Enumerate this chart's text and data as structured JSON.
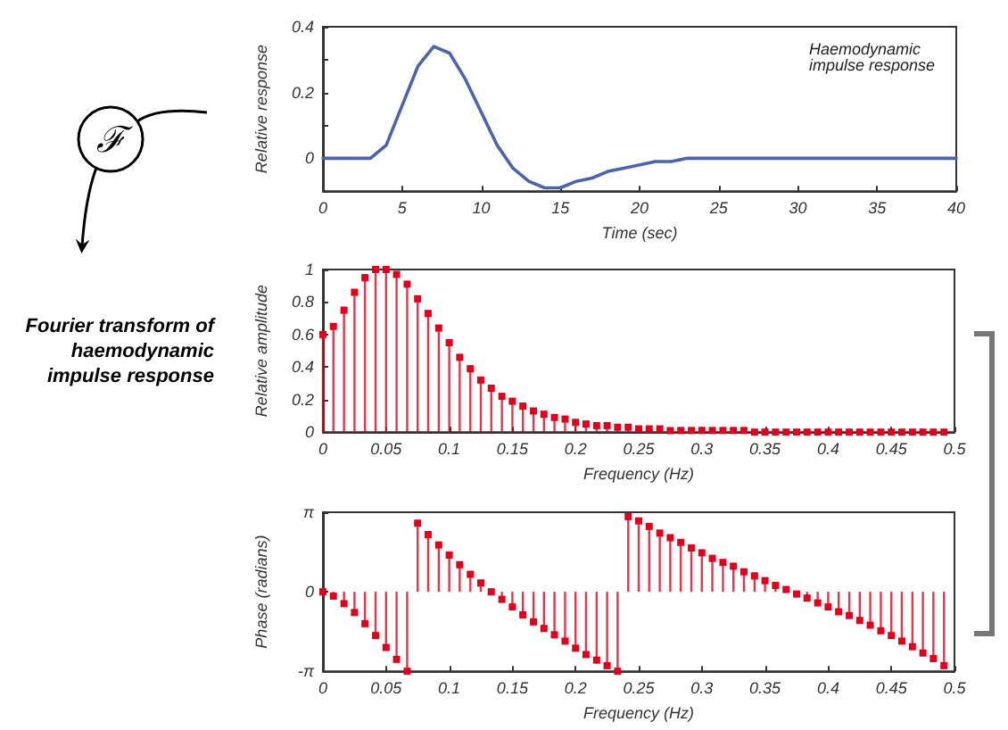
{
  "chart_data": [
    {
      "type": "line",
      "ylabel": "Relative response",
      "xlabel": "Time (sec)",
      "annotations": [
        "Haemodynamic impulse response",
        "ℱ"
      ],
      "x": [
        0,
        1,
        2,
        3,
        4,
        5,
        6,
        7,
        8,
        9,
        10,
        11,
        12,
        13,
        14,
        15,
        16,
        17,
        18,
        19,
        20,
        21,
        22,
        23,
        24,
        25,
        26,
        28,
        30,
        35,
        40
      ],
      "series": [
        {
          "color": "#4a64ad",
          "values": [
            0,
            0,
            0,
            0,
            0.04,
            0.16,
            0.28,
            0.34,
            0.32,
            0.24,
            0.14,
            0.04,
            -0.03,
            -0.07,
            -0.09,
            -0.09,
            -0.07,
            -0.06,
            -0.04,
            -0.03,
            -0.02,
            -0.01,
            -0.01,
            0,
            0,
            0,
            0,
            0,
            0,
            0,
            0
          ]
        }
      ],
      "xlim": [
        0,
        40
      ],
      "xticks": [
        0,
        5,
        10,
        15,
        20,
        25,
        30,
        35,
        40
      ],
      "ylim": [
        -0.1,
        0.4
      ],
      "yticks": [
        0,
        {
          "value": 0.1,
          "label": null
        },
        0.2,
        {
          "value": 0.3,
          "label": null
        },
        0.4
      ],
      "grid": false,
      "marker": "none",
      "line_style": "solid"
    },
    {
      "type": "lollipop",
      "ylabel": "Relative amplitude",
      "xlabel": "Frequency (Hz)",
      "annotations": [
        "Fourier transform of haemodynamic impulse response"
      ],
      "x": [
        0,
        0.0083,
        0.0167,
        0.025,
        0.0333,
        0.0417,
        0.05,
        0.0583,
        0.0667,
        0.075,
        0.0833,
        0.0917,
        0.1,
        0.1083,
        0.1167,
        0.125,
        0.1333,
        0.1417,
        0.15,
        0.1583,
        0.1667,
        0.175,
        0.1833,
        0.1917,
        0.2,
        0.2083,
        0.2167,
        0.225,
        0.2333,
        0.2417,
        0.25,
        0.2583,
        0.2667,
        0.275,
        0.2833,
        0.2917,
        0.3,
        0.3083,
        0.3167,
        0.325,
        0.3333,
        0.3417,
        0.35,
        0.3583,
        0.3667,
        0.375,
        0.3833,
        0.3917,
        0.4,
        0.4083,
        0.4167,
        0.425,
        0.4333,
        0.4417,
        0.45,
        0.4583,
        0.4667,
        0.475,
        0.4833,
        0.4917
      ],
      "series": [
        {
          "color": "#e3001b",
          "values": [
            0.6,
            0.65,
            0.75,
            0.86,
            0.95,
            1,
            1,
            0.97,
            0.91,
            0.82,
            0.73,
            0.64,
            0.55,
            0.46,
            0.39,
            0.32,
            0.27,
            0.22,
            0.19,
            0.16,
            0.13,
            0.11,
            0.09,
            0.08,
            0.06,
            0.05,
            0.04,
            0.04,
            0.03,
            0.03,
            0.02,
            0.02,
            0.02,
            0.01,
            0.01,
            0.01,
            0.01,
            0.01,
            0.01,
            0.01,
            0.01,
            0,
            0,
            0,
            0,
            0,
            0,
            0,
            0,
            0,
            0,
            0,
            0,
            0,
            0,
            0,
            0,
            0,
            0,
            0
          ]
        }
      ],
      "xlim": [
        0,
        0.5
      ],
      "xticks": [
        0,
        0.05,
        0.1,
        0.15,
        0.2,
        0.25,
        0.3,
        0.35,
        0.4,
        0.45,
        0.5
      ],
      "ylim": [
        0,
        1
      ],
      "yticks": [
        0,
        0.2,
        0.4,
        0.6,
        0.8,
        1
      ],
      "grid": false,
      "marker": "square"
    },
    {
      "type": "lollipop",
      "ylabel": "Phase (radians)",
      "xlabel": "Frequency (Hz)",
      "x": [
        0,
        0.0083,
        0.0167,
        0.025,
        0.0333,
        0.0417,
        0.05,
        0.0583,
        0.0667,
        0.075,
        0.0833,
        0.0917,
        0.1,
        0.1083,
        0.1167,
        0.125,
        0.1333,
        0.1417,
        0.15,
        0.1583,
        0.1667,
        0.175,
        0.1833,
        0.1917,
        0.2,
        0.2083,
        0.2167,
        0.225,
        0.2333,
        0.2417,
        0.25,
        0.2583,
        0.2667,
        0.275,
        0.2833,
        0.2917,
        0.3,
        0.3083,
        0.3167,
        0.325,
        0.3333,
        0.3417,
        0.35,
        0.3583,
        0.3667,
        0.375,
        0.3833,
        0.3917,
        0.4,
        0.4083,
        0.4167,
        0.425,
        0.4333,
        0.4417,
        0.45,
        0.4583,
        0.4667,
        0.475,
        0.4833,
        0.4917
      ],
      "series": [
        {
          "color": "#e3001b",
          "values": [
            0,
            -0.17,
            -0.47,
            -0.82,
            -1.26,
            -1.73,
            -2.2,
            -2.67,
            -3.14,
            2.71,
            2.26,
            1.85,
            1.45,
            1.07,
            0.69,
            0.35,
            0,
            -0.3,
            -0.6,
            -0.91,
            -1.19,
            -1.45,
            -1.7,
            -1.95,
            -2.23,
            -2.48,
            -2.7,
            -2.92,
            -3.14,
            2.97,
            2.8,
            2.58,
            2.32,
            2.14,
            1.95,
            1.73,
            1.54,
            1.32,
            1.16,
            1.01,
            0.79,
            0.63,
            0.44,
            0.25,
            0.09,
            -0.09,
            -0.25,
            -0.44,
            -0.6,
            -0.79,
            -0.94,
            -1.13,
            -1.32,
            -1.54,
            -1.73,
            -1.95,
            -2.17,
            -2.42,
            -2.64,
            -2.92
          ]
        }
      ],
      "xlim": [
        0,
        0.5
      ],
      "xticks": [
        0,
        0.05,
        0.1,
        0.15,
        0.2,
        0.25,
        0.3,
        0.35,
        0.4,
        0.45,
        0.5
      ],
      "ylim": [
        -3.1416,
        3.1416
      ],
      "yticks": [
        {
          "value": -3.1416,
          "label": "-π"
        },
        0,
        {
          "value": 3.1416,
          "label": "π"
        }
      ],
      "grid": false,
      "marker": "square"
    }
  ]
}
